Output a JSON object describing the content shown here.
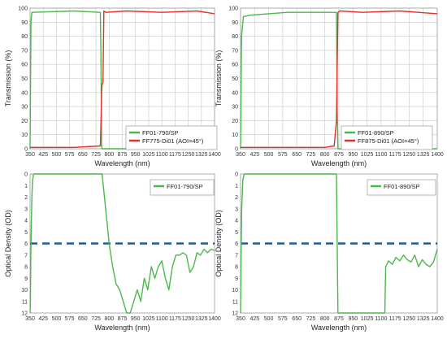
{
  "colors": {
    "green": "#4cb84c",
    "red": "#e0302a",
    "dash": "#1f5c99",
    "grid": "#c8c8c8",
    "frame": "#9a9a9a"
  },
  "chart_data": [
    {
      "type": "line",
      "xlabel": "Wavelength (nm)",
      "ylabel": "Transmission (%)",
      "xlim": [
        350,
        1400
      ],
      "ylim": [
        0,
        100
      ],
      "xticks": [
        350,
        425,
        500,
        575,
        650,
        725,
        800,
        875,
        950,
        1025,
        1100,
        1175,
        1250,
        1325,
        1400
      ],
      "yticks": [
        0,
        10,
        20,
        30,
        40,
        50,
        60,
        70,
        80,
        90,
        100
      ],
      "legend_position": "bottom-right",
      "grid": true,
      "series": [
        {
          "name": "FF01-790/SP",
          "color": "#4cb84c",
          "x": [
            350,
            355,
            360,
            600,
            750,
            754,
            757,
            760,
            800,
            1400
          ],
          "y": [
            0,
            90,
            97,
            98,
            97,
            60,
            2,
            0,
            0,
            0
          ]
        },
        {
          "name": "FF775-Di01 (AOI=45°)",
          "color": "#e0302a",
          "x": [
            350,
            600,
            750,
            754,
            757,
            760,
            765,
            770,
            780,
            900,
            1100,
            1300,
            1400
          ],
          "y": [
            1,
            1,
            2,
            20,
            40,
            46,
            47,
            98,
            97,
            98,
            97,
            98,
            96
          ]
        }
      ]
    },
    {
      "type": "line",
      "xlabel": "Wavelength (nm)",
      "ylabel": "Transmission (%)",
      "xlim": [
        350,
        1400
      ],
      "ylim": [
        0,
        100
      ],
      "xticks": [
        350,
        425,
        500,
        575,
        650,
        725,
        800,
        875,
        950,
        1025,
        1100,
        1175,
        1250,
        1325,
        1400
      ],
      "yticks": [
        0,
        10,
        20,
        30,
        40,
        50,
        60,
        70,
        80,
        90,
        100
      ],
      "legend_position": "bottom-right",
      "grid": true,
      "series": [
        {
          "name": "FF01-890/SP",
          "color": "#4cb84c",
          "x": [
            350,
            355,
            365,
            400,
            500,
            600,
            700,
            800,
            862,
            866,
            870,
            900,
            1400
          ],
          "y": [
            0,
            80,
            94,
            95,
            96,
            97,
            97,
            97,
            97,
            30,
            0,
            0,
            0
          ]
        },
        {
          "name": "FF875-Di01 (AOI=45°)",
          "color": "#e0302a",
          "x": [
            350,
            500,
            800,
            850,
            862,
            866,
            870,
            880,
            1000,
            1200,
            1400
          ],
          "y": [
            1,
            1,
            1,
            2,
            20,
            60,
            97,
            98,
            97,
            98,
            96
          ]
        }
      ]
    },
    {
      "type": "line",
      "xlabel": "Wavelength (nm)",
      "ylabel": "Optical Density (OD)",
      "xlim": [
        350,
        1400
      ],
      "ylim": [
        0,
        12
      ],
      "y_inverted": true,
      "xticks": [
        350,
        425,
        500,
        575,
        650,
        725,
        800,
        875,
        950,
        1025,
        1100,
        1175,
        1250,
        1325,
        1400
      ],
      "yticks": [
        0,
        1,
        2,
        3,
        4,
        5,
        6,
        7,
        8,
        9,
        10,
        11,
        12
      ],
      "reference_line_od": 6,
      "legend_position": "top-right",
      "grid": false,
      "series": [
        {
          "name": "FF01-790/SP",
          "color": "#4cb84c",
          "x": [
            350,
            352,
            355,
            360,
            365,
            370,
            760,
            780,
            800,
            820,
            840,
            860,
            880,
            900,
            920,
            940,
            960,
            980,
            1000,
            1020,
            1040,
            1060,
            1080,
            1100,
            1120,
            1140,
            1160,
            1180,
            1200,
            1220,
            1240,
            1260,
            1280,
            1300,
            1320,
            1340,
            1360,
            1380,
            1400
          ],
          "y": [
            12,
            11,
            6,
            2,
            0.5,
            0,
            0,
            3,
            6,
            8,
            9.5,
            10,
            11,
            12,
            12,
            11,
            10,
            11,
            9,
            10,
            8,
            9,
            8,
            7.5,
            9,
            10,
            8,
            7,
            7,
            6.8,
            7,
            8.5,
            8,
            6.8,
            7,
            6.5,
            6.8,
            6.5,
            6.6
          ]
        }
      ]
    },
    {
      "type": "line",
      "xlabel": "Wavelength (nm)",
      "ylabel": "Optical Density (OD)",
      "xlim": [
        350,
        1400
      ],
      "ylim": [
        0,
        12
      ],
      "y_inverted": true,
      "xticks": [
        350,
        425,
        500,
        575,
        650,
        725,
        800,
        875,
        950,
        1025,
        1100,
        1175,
        1250,
        1325,
        1400
      ],
      "yticks": [
        0,
        1,
        2,
        3,
        4,
        5,
        6,
        7,
        8,
        9,
        10,
        11,
        12
      ],
      "reference_line_od": 6,
      "legend_position": "top-right",
      "grid": false,
      "series": [
        {
          "name": "FF01-890/SP",
          "color": "#4cb84c",
          "x": [
            350,
            352,
            356,
            362,
            370,
            862,
            866,
            870,
            1120,
            1125,
            1140,
            1160,
            1180,
            1200,
            1220,
            1240,
            1260,
            1280,
            1300,
            1320,
            1340,
            1360,
            1380,
            1400
          ],
          "y": [
            12,
            8,
            3,
            0.5,
            0,
            0,
            6,
            12,
            12,
            8,
            7.5,
            7.8,
            7.2,
            7.5,
            7,
            7.4,
            7.6,
            7,
            8,
            7.4,
            7.8,
            8,
            7.6,
            6.5
          ]
        }
      ]
    }
  ]
}
